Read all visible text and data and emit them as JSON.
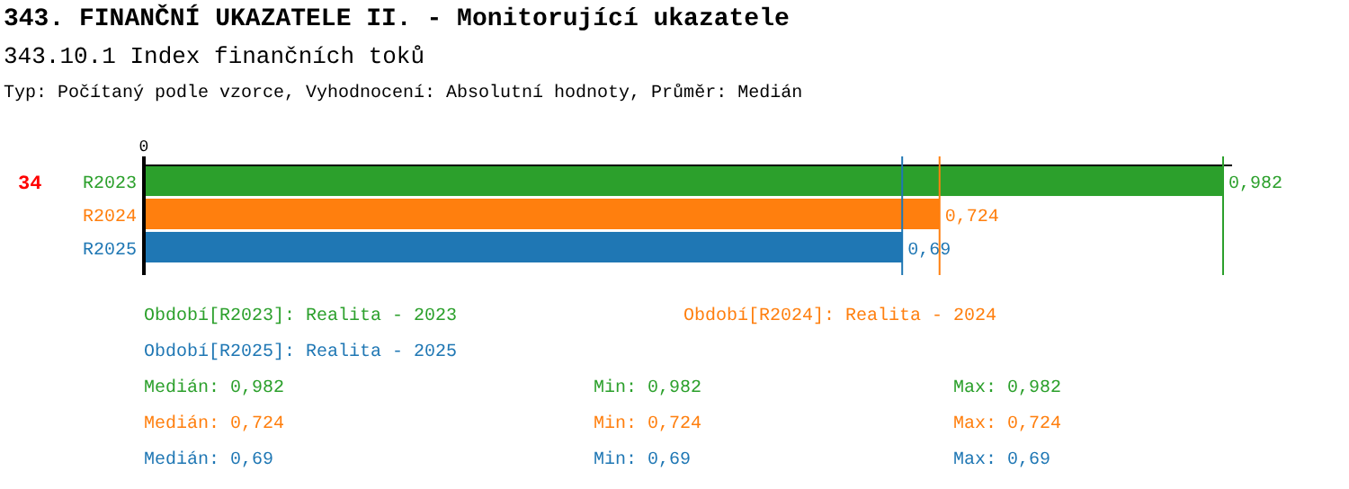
{
  "chart_data": {
    "type": "bar",
    "orientation": "horizontal",
    "stacked": true,
    "title": "343. FINANČNÍ UKAZATELE II. - Monitorující ukazatele",
    "subtitle": "343.10.1 Index finančních toků",
    "categories": [
      "R2023",
      "R2024",
      "R2025"
    ],
    "series": [
      {
        "name": "Období[R2023]: Realita - 2023",
        "color": "#2ca02c",
        "values": [
          0.982,
          null,
          null
        ],
        "value_labels": [
          "0,982",
          null,
          null
        ]
      },
      {
        "name": "Období[R2024]: Realita - 2024",
        "color": "#ff7f0e",
        "values": [
          null,
          0.724,
          null
        ],
        "value_labels": [
          null,
          "0,724",
          null
        ]
      },
      {
        "name": "Období[R2025]: Realita - 2025",
        "color": "#1f77b4",
        "values": [
          null,
          null,
          0.69
        ],
        "value_labels": [
          null,
          null,
          "0,69"
        ]
      }
    ],
    "ref_lines": [
      {
        "axis": "x",
        "value": 0.982,
        "color": "#2ca02c"
      },
      {
        "axis": "x",
        "value": 0.724,
        "color": "#ff7f0e"
      },
      {
        "axis": "x",
        "value": 0.69,
        "color": "#1f77b4"
      }
    ],
    "legend": "bottom",
    "annotations": [
      "Typ: Počítaný podle vzorce, Vyhodnocení: Absolutní hodnoty, Průměr: Medián",
      "34",
      "0",
      "Medián: 0,982",
      "Min: 0,982",
      "Max: 0,982",
      "Medián: 0,724",
      "Min: 0,724",
      "Max: 0,724",
      "Medián: 0,69",
      "Min: 0,69",
      "Max: 0,69"
    ]
  }
}
